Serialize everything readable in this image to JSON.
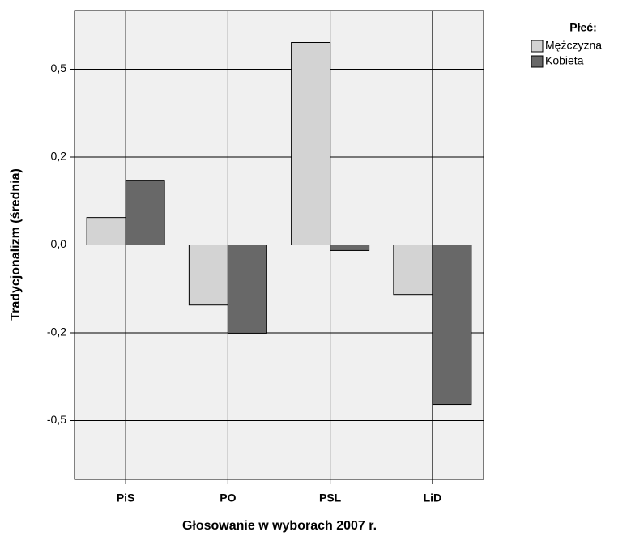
{
  "chart_data": {
    "type": "bar",
    "x_label": "Głosowanie w wyborach 2007 r.",
    "y_label": "Tradycjonalizm (średnia)",
    "legend_title": "Płeć:",
    "legend_position": "right",
    "grid": true,
    "categories": [
      "PiS",
      "PO",
      "PSL",
      "LiD"
    ],
    "series": [
      {
        "name": "Mężczyzna",
        "color": "#d3d3d3",
        "values": [
          0.078,
          -0.171,
          0.576,
          -0.141
        ]
      },
      {
        "name": "Kobieta",
        "color": "#686868",
        "values": [
          0.184,
          -0.251,
          -0.016,
          -0.454
        ]
      }
    ],
    "ylim": [
      -0.667,
      0.667
    ],
    "yticks": [
      {
        "value": -0.5,
        "label": "-0,5"
      },
      {
        "value": -0.25,
        "label": "-0,2"
      },
      {
        "value": 0,
        "label": "0,0"
      },
      {
        "value": 0.25,
        "label": "0,2"
      },
      {
        "value": 0.5,
        "label": "0,5"
      }
    ]
  }
}
